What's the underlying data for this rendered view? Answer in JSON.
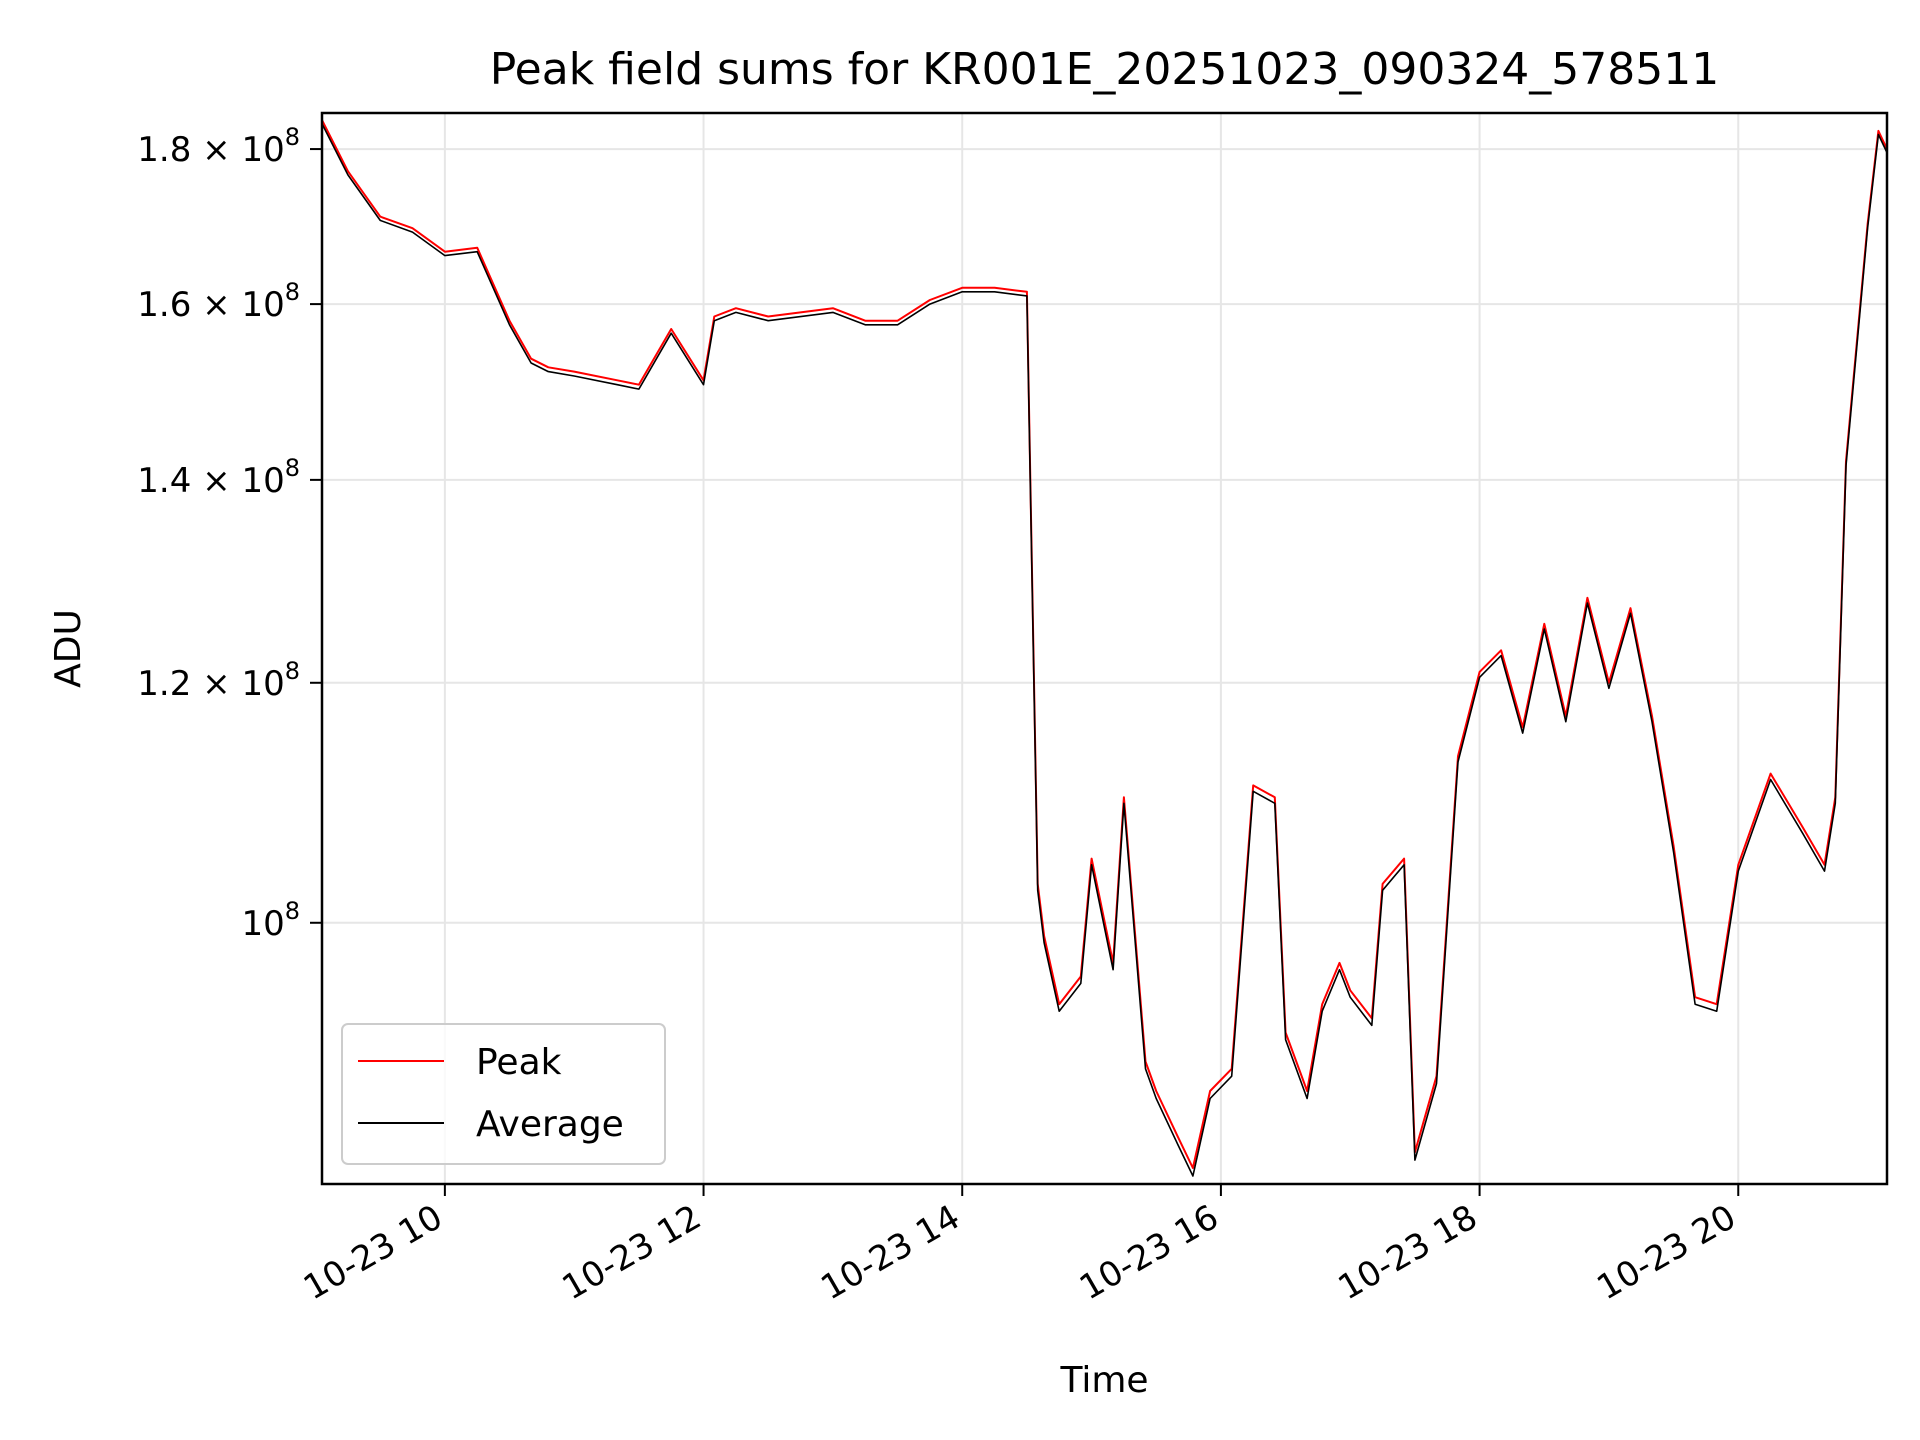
{
  "chart_data": {
    "type": "line",
    "title": "Peak field sums for KR001E_20251023_090324_578511",
    "xlabel": "Time",
    "ylabel": "ADU",
    "yscale": "log",
    "xlim": [
      "2025-10-23 09:03",
      "2025-10-23 21:09"
    ],
    "ylim": [
      82000000,
      185000000
    ],
    "x_ticks": [
      {
        "label": "10-23 10",
        "time": "2025-10-23 10:00"
      },
      {
        "label": "10-23 12",
        "time": "2025-10-23 12:00"
      },
      {
        "label": "10-23 14",
        "time": "2025-10-23 14:00"
      },
      {
        "label": "10-23 16",
        "time": "2025-10-23 16:00"
      },
      {
        "label": "10-23 18",
        "time": "2025-10-23 18:00"
      },
      {
        "label": "10-23 20",
        "time": "2025-10-23 20:00"
      }
    ],
    "y_ticks": [
      {
        "mant": "10",
        "exp": "8",
        "value": 100000000
      },
      {
        "mant": "1.2 × 10",
        "exp": "8",
        "value": 120000000
      },
      {
        "mant": "1.4 × 10",
        "exp": "8",
        "value": 140000000
      },
      {
        "mant": "1.6 × 10",
        "exp": "8",
        "value": 160000000
      },
      {
        "mant": "1.8 × 10",
        "exp": "8",
        "value": 180000000
      }
    ],
    "grid": true,
    "legend_position": "lower-left",
    "series": [
      {
        "name": "Peak",
        "color": "#ff0000",
        "x": [
          "2025-10-23 09:03",
          "2025-10-23 09:15",
          "2025-10-23 09:30",
          "2025-10-23 09:45",
          "2025-10-23 10:00",
          "2025-10-23 10:15",
          "2025-10-23 10:30",
          "2025-10-23 10:40",
          "2025-10-23 10:48",
          "2025-10-23 11:00",
          "2025-10-23 11:20",
          "2025-10-23 11:30",
          "2025-10-23 11:45",
          "2025-10-23 12:00",
          "2025-10-23 12:05",
          "2025-10-23 12:15",
          "2025-10-23 12:30",
          "2025-10-23 13:00",
          "2025-10-23 13:15",
          "2025-10-23 13:30",
          "2025-10-23 13:45",
          "2025-10-23 14:00",
          "2025-10-23 14:15",
          "2025-10-23 14:30",
          "2025-10-23 14:35",
          "2025-10-23 14:38",
          "2025-10-23 14:45",
          "2025-10-23 14:55",
          "2025-10-23 15:00",
          "2025-10-23 15:10",
          "2025-10-23 15:15",
          "2025-10-23 15:25",
          "2025-10-23 15:30",
          "2025-10-23 15:40",
          "2025-10-23 15:47",
          "2025-10-23 15:55",
          "2025-10-23 16:05",
          "2025-10-23 16:15",
          "2025-10-23 16:25",
          "2025-10-23 16:30",
          "2025-10-23 16:40",
          "2025-10-23 16:47",
          "2025-10-23 16:55",
          "2025-10-23 17:00",
          "2025-10-23 17:10",
          "2025-10-23 17:15",
          "2025-10-23 17:25",
          "2025-10-23 17:30",
          "2025-10-23 17:40",
          "2025-10-23 17:50",
          "2025-10-23 18:00",
          "2025-10-23 18:10",
          "2025-10-23 18:20",
          "2025-10-23 18:30",
          "2025-10-23 18:40",
          "2025-10-23 18:50",
          "2025-10-23 19:00",
          "2025-10-23 19:10",
          "2025-10-23 19:20",
          "2025-10-23 19:30",
          "2025-10-23 19:40",
          "2025-10-23 19:50",
          "2025-10-23 20:00",
          "2025-10-23 20:15",
          "2025-10-23 20:30",
          "2025-10-23 20:40",
          "2025-10-23 20:45",
          "2025-10-23 20:50",
          "2025-10-23 21:00",
          "2025-10-23 21:05",
          "2025-10-23 21:09"
        ],
        "values": [
          184000000,
          177000000,
          171000000,
          169500000,
          166500000,
          167000000,
          158000000,
          153500000,
          152500000,
          152000000,
          151000000,
          150500000,
          157000000,
          151000000,
          158500000,
          159500000,
          158500000,
          159500000,
          158000000,
          158000000,
          160500000,
          162000000,
          162000000,
          161500000,
          103000000,
          99000000,
          94000000,
          96000000,
          105000000,
          97000000,
          110000000,
          90000000,
          88000000,
          85000000,
          83000000,
          88000000,
          89500000,
          111000000,
          110000000,
          92000000,
          88000000,
          94000000,
          97000000,
          95000000,
          93000000,
          103000000,
          105000000,
          84000000,
          89000000,
          113500000,
          121000000,
          123000000,
          116000000,
          125500000,
          117000000,
          128000000,
          120000000,
          127000000,
          117000000,
          106000000,
          94500000,
          94000000,
          104500000,
          112000000,
          107500000,
          104500000,
          110000000,
          142000000,
          170000000,
          182500000,
          180000000
        ]
      },
      {
        "name": "Average",
        "color": "#000000",
        "x": [
          "2025-10-23 09:03",
          "2025-10-23 09:15",
          "2025-10-23 09:30",
          "2025-10-23 09:45",
          "2025-10-23 10:00",
          "2025-10-23 10:15",
          "2025-10-23 10:30",
          "2025-10-23 10:40",
          "2025-10-23 10:48",
          "2025-10-23 11:00",
          "2025-10-23 11:20",
          "2025-10-23 11:30",
          "2025-10-23 11:45",
          "2025-10-23 12:00",
          "2025-10-23 12:05",
          "2025-10-23 12:15",
          "2025-10-23 12:30",
          "2025-10-23 13:00",
          "2025-10-23 13:15",
          "2025-10-23 13:30",
          "2025-10-23 13:45",
          "2025-10-23 14:00",
          "2025-10-23 14:15",
          "2025-10-23 14:30",
          "2025-10-23 14:35",
          "2025-10-23 14:38",
          "2025-10-23 14:45",
          "2025-10-23 14:55",
          "2025-10-23 15:00",
          "2025-10-23 15:10",
          "2025-10-23 15:15",
          "2025-10-23 15:25",
          "2025-10-23 15:30",
          "2025-10-23 15:40",
          "2025-10-23 15:47",
          "2025-10-23 15:55",
          "2025-10-23 16:05",
          "2025-10-23 16:15",
          "2025-10-23 16:25",
          "2025-10-23 16:30",
          "2025-10-23 16:40",
          "2025-10-23 16:47",
          "2025-10-23 16:55",
          "2025-10-23 17:00",
          "2025-10-23 17:10",
          "2025-10-23 17:15",
          "2025-10-23 17:25",
          "2025-10-23 17:30",
          "2025-10-23 17:40",
          "2025-10-23 17:50",
          "2025-10-23 18:00",
          "2025-10-23 18:10",
          "2025-10-23 18:20",
          "2025-10-23 18:30",
          "2025-10-23 18:40",
          "2025-10-23 18:50",
          "2025-10-23 19:00",
          "2025-10-23 19:10",
          "2025-10-23 19:20",
          "2025-10-23 19:30",
          "2025-10-23 19:40",
          "2025-10-23 19:50",
          "2025-10-23 20:00",
          "2025-10-23 20:15",
          "2025-10-23 20:30",
          "2025-10-23 20:40",
          "2025-10-23 20:45",
          "2025-10-23 20:50",
          "2025-10-23 21:00",
          "2025-10-23 21:05",
          "2025-10-23 21:09"
        ],
        "values": [
          183500000,
          176500000,
          170500000,
          169000000,
          166000000,
          166500000,
          157500000,
          153000000,
          152000000,
          151500000,
          150500000,
          150000000,
          156500000,
          150500000,
          158000000,
          159000000,
          158000000,
          159000000,
          157500000,
          157500000,
          160000000,
          161500000,
          161500000,
          161000000,
          102500000,
          98500000,
          93500000,
          95500000,
          104500000,
          96500000,
          109500000,
          89500000,
          87500000,
          84500000,
          82500000,
          87500000,
          89000000,
          110500000,
          109500000,
          91500000,
          87500000,
          93500000,
          96500000,
          94500000,
          92500000,
          102500000,
          104500000,
          83500000,
          88500000,
          113000000,
          120500000,
          122500000,
          115500000,
          125000000,
          116500000,
          127500000,
          119500000,
          126500000,
          116500000,
          105500000,
          94000000,
          93500000,
          104000000,
          111500000,
          107000000,
          104000000,
          109500000,
          141500000,
          169500000,
          182000000,
          179500000
        ]
      }
    ]
  }
}
